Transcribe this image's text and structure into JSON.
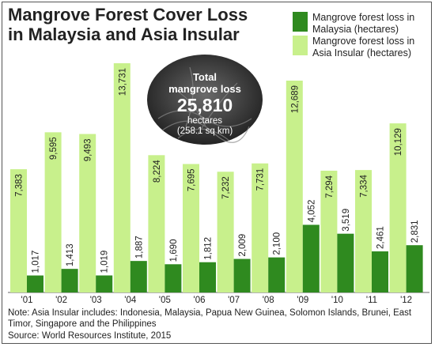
{
  "chart_data": {
    "type": "bar",
    "title": "Mangrove Forest Cover Loss in Malaysia and Asia Insular",
    "categories": [
      "'01",
      "'02",
      "'03",
      "'04",
      "'05",
      "'06",
      "'07",
      "'08",
      "'09",
      "'10",
      "'11",
      "'12"
    ],
    "series": [
      {
        "name": "Mangrove forest loss in Asia Insular (hectares)",
        "color": "#c8f08c",
        "values": [
          7383,
          9595,
          9493,
          13731,
          8224,
          7695,
          7232,
          7731,
          12689,
          7294,
          7334,
          10129
        ],
        "labels": [
          "7,383",
          "9,595",
          "9,493",
          "13,731",
          "8,224",
          "7,695",
          "7,232",
          "7,731",
          "12,689",
          "7,294",
          "7,334",
          "10,129"
        ]
      },
      {
        "name": "Mangrove forest loss in Malaysia (hectares)",
        "color": "#2f8a1f",
        "values": [
          1017,
          1413,
          1019,
          1887,
          1690,
          1812,
          2009,
          2100,
          4052,
          3519,
          2461,
          2831
        ],
        "labels": [
          "1,017",
          "1,413",
          "1,019",
          "1,887",
          "1,690",
          "1,812",
          "2,009",
          "2,100",
          "4,052",
          "3,519",
          "2,461",
          "2,831"
        ]
      }
    ],
    "legend_position": "top-right",
    "grid": false,
    "xlabel": "",
    "ylabel": ""
  },
  "callout": {
    "line1": "Total",
    "line2": "mangrove loss",
    "value": "25,810",
    "unit": "hectares",
    "sub": "(258.1 sq km)"
  },
  "footnote": "Note: Asia Insular includes: Indonesia, Malaysia, Papua New Guinea, Solomon Islands, Brunei, East Timor, Singapore and the Philippines",
  "source": "Source: World Resources Institute, 2015"
}
